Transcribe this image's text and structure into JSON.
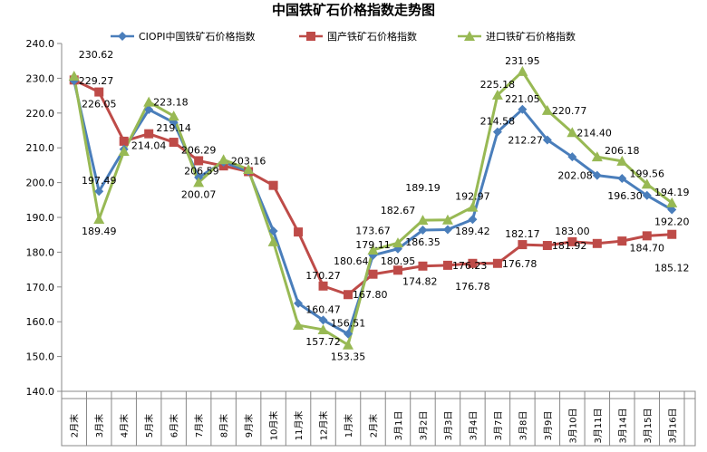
{
  "chart_data": {
    "type": "line",
    "title": "中国铁矿石价格指数走势图",
    "xlabel": "",
    "ylabel": "",
    "ylim": [
      140,
      240
    ],
    "yticks": [
      "140.0",
      "150.0",
      "160.0",
      "170.0",
      "180.0",
      "190.0",
      "200.0",
      "210.0",
      "220.0",
      "230.0",
      "240.0"
    ],
    "grid": false,
    "legend_position": "top",
    "categories": [
      "2月末",
      "3月末",
      "4月末",
      "5月末",
      "6月末",
      "7月末",
      "8月末",
      "9月末",
      "10月末",
      "11月末",
      "12月末",
      "1月末",
      "2月末",
      "3月1日",
      "3月2日",
      "3月3日",
      "3月4日",
      "3月7日",
      "3月8日",
      "3月9日",
      "3月10日",
      "3月11日",
      "3月14日",
      "3月15日",
      "3月16日"
    ],
    "series": [
      {
        "name": "CIOPI中国铁矿石价格指数",
        "color": "#4a7ebb",
        "marker": "diamond",
        "values": [
          229.27,
          197.49,
          209.6,
          221.0,
          217.3,
          201.5,
          205.9,
          203.3,
          186.1,
          165.3,
          160.47,
          156.51,
          179.11,
          180.95,
          186.35,
          186.5,
          189.42,
          214.58,
          221.05,
          212.27,
          207.4,
          202.08,
          201.2,
          196.3,
          192.2
        ],
        "labeled": [
          0,
          1,
          10,
          11,
          12,
          13,
          14,
          16,
          17,
          18,
          19,
          21,
          23,
          24
        ],
        "label_pos": [
          "below",
          "left",
          "",
          "",
          "",
          "",
          "",
          "",
          "",
          "",
          "above",
          "above",
          "above",
          "above",
          "below",
          "",
          "below",
          "above",
          "above",
          "left",
          "",
          "left",
          "",
          "left",
          "below"
        ]
      },
      {
        "name": "国产铁矿石价格指数",
        "color": "#be4b48",
        "marker": "square",
        "values": [
          229.5,
          226.05,
          211.9,
          214.04,
          211.6,
          206.29,
          204.8,
          203.16,
          199.2,
          185.8,
          170.27,
          167.8,
          173.67,
          174.82,
          176.0,
          176.23,
          176.78,
          176.78,
          182.17,
          181.92,
          183.0,
          182.5,
          183.2,
          184.7,
          185.12
        ],
        "labeled": [
          1,
          3,
          5,
          7,
          10,
          11,
          12,
          13,
          15,
          16,
          17,
          18,
          19,
          20,
          23,
          24
        ],
        "label_pos": [
          "",
          "right",
          "",
          "below",
          "",
          "above",
          "",
          "above",
          "",
          "",
          "above",
          "above",
          "right",
          "below",
          "",
          "below",
          "above",
          "below",
          "above",
          "below",
          "below",
          "",
          "",
          "below",
          "below"
        ]
      },
      {
        "name": "进口铁矿石价格指数",
        "color": "#98b954",
        "marker": "triangle",
        "values": [
          230.62,
          189.49,
          209.0,
          223.18,
          219.14,
          200.07,
          206.59,
          203.8,
          183.0,
          159.0,
          157.72,
          153.35,
          180.64,
          182.67,
          189.19,
          189.3,
          192.97,
          225.18,
          231.95,
          220.77,
          214.4,
          207.4,
          206.18,
          199.56,
          194.19
        ],
        "labeled": [
          0,
          1,
          3,
          4,
          5,
          6,
          10,
          11,
          12,
          13,
          14,
          16,
          17,
          18,
          19,
          20,
          22,
          23,
          24
        ],
        "label_pos": [
          "above",
          "below",
          "above",
          "right",
          "below",
          "below",
          "",
          "",
          "",
          "",
          "below",
          "below",
          "above",
          "above",
          "above",
          "",
          "above",
          "above",
          "above",
          "right",
          "right",
          "",
          "above",
          "above",
          "right"
        ]
      }
    ]
  }
}
